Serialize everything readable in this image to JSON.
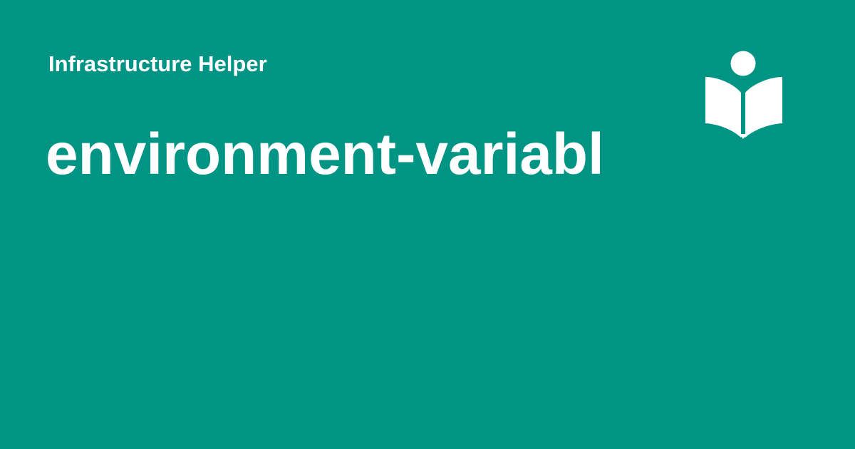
{
  "site": {
    "name": "Infrastructure Helper"
  },
  "page": {
    "title": "environment-variabl"
  },
  "logo": {
    "icon": "reader-book-icon",
    "color": "#FFFFFF"
  },
  "theme": {
    "background": "#009485",
    "text": "#FFFFFF"
  }
}
